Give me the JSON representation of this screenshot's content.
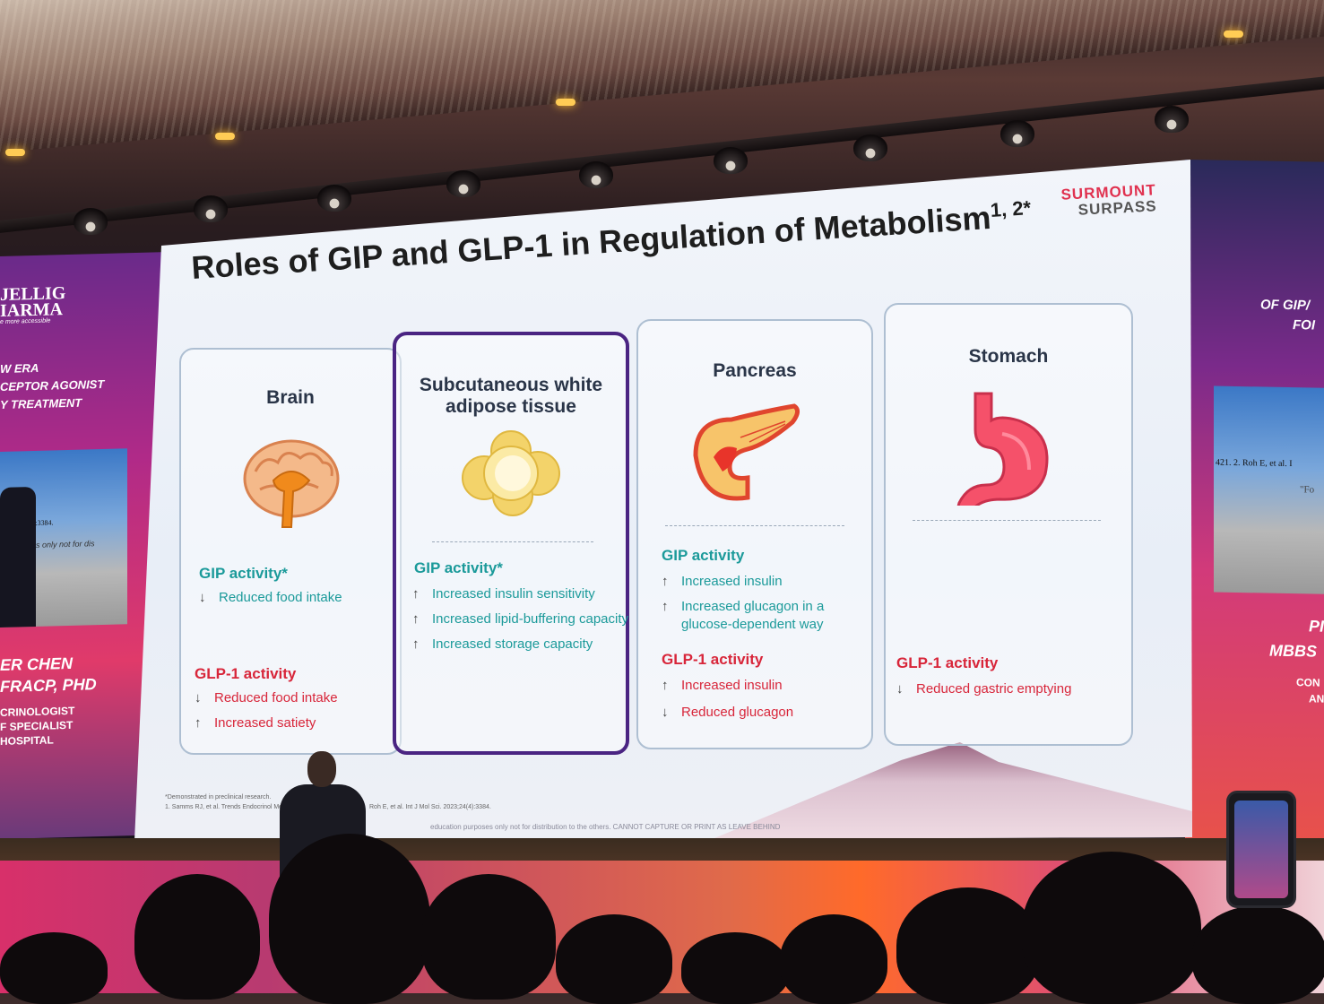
{
  "slide": {
    "brand_top": "SURMOUNT",
    "brand_bottom": "SURPASS",
    "title": "Roles of GIP and GLP-1 in Regulation of Metabolism",
    "title_sup": "1, 2*",
    "cards": [
      {
        "title": "Brain",
        "icon": "brain-icon",
        "gip_label": "GIP activity*",
        "gip_items": [
          {
            "arrow": "↓",
            "text": "Reduced food intake"
          }
        ],
        "glp_label": "GLP-1 activity",
        "glp_items": [
          {
            "arrow": "↓",
            "text": "Reduced food intake"
          },
          {
            "arrow": "↑",
            "text": "Increased satiety"
          }
        ]
      },
      {
        "title_line1": "Subcutaneous white",
        "title_line2": "adipose tissue",
        "icon": "fat-cell-icon",
        "gip_label": "GIP activity*",
        "gip_items": [
          {
            "arrow": "↑",
            "text": "Increased insulin sensitivity"
          },
          {
            "arrow": "↑",
            "text": "Increased lipid-buffering capacity"
          },
          {
            "arrow": "↑",
            "text": "Increased storage capacity"
          }
        ]
      },
      {
        "title": "Pancreas",
        "icon": "pancreas-icon",
        "gip_label": "GIP activity",
        "gip_items": [
          {
            "arrow": "↑",
            "text": "Increased insulin"
          },
          {
            "arrow": "↑",
            "text": "Increased glucagon in a",
            "text2": "glucose-dependent way"
          }
        ],
        "glp_label": "GLP-1 activity",
        "glp_items": [
          {
            "arrow": "↑",
            "text": "Increased insulin"
          },
          {
            "arrow": "↓",
            "text": "Reduced glucagon"
          }
        ]
      },
      {
        "title": "Stomach",
        "icon": "stomach-icon",
        "glp_label": "GLP-1 activity",
        "glp_items": [
          {
            "arrow": "↓",
            "text": "Reduced gastric emptying"
          }
        ]
      }
    ],
    "footnote1": "*Demonstrated in preclinical research.",
    "footnote2": "1. Samms RJ, et al. Trends Endocrinol Metab.",
    "footnote3": "Roh E, et al. Int J Mol Sci. 2023;24(4):3384.",
    "disclaimer": "education purposes only not for distribution to the others. CANNOT CAPTURE OR PRINT AS LEAVE BEHIND"
  },
  "left_screen": {
    "logo_line1": "JELLIG",
    "logo_line2": "IARMA",
    "tagline": "e more accessible",
    "line1": "W ERA",
    "line2": "CEPTOR AGONIST",
    "line3": "Y TREATMENT",
    "video_text1": "(4):3384.",
    "video_text2": "s only not for dis",
    "name1": "ER CHEN",
    "name2": "FRACP, PHD",
    "role1": "CRINOLOGIST",
    "role2": "F SPECIALIST",
    "role3": "HOSPITAL"
  },
  "right_screen": {
    "line1": "OF GIP/",
    "line2": "FOI",
    "video_text1": "421. 2. Roh E, et al. I",
    "video_text2": "\"Fo",
    "name1": "PI",
    "name2": "MBBS",
    "role1": "CON",
    "role2": "AN"
  }
}
